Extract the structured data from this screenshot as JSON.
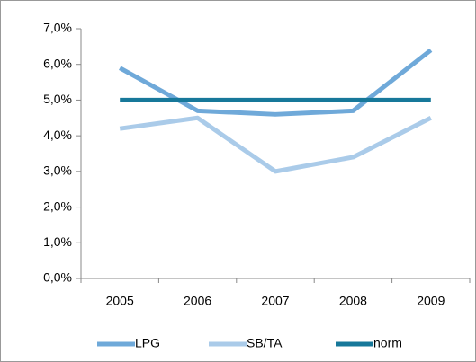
{
  "chart_data": {
    "type": "line",
    "categories": [
      "2005",
      "2006",
      "2007",
      "2008",
      "2009"
    ],
    "series": [
      {
        "name": "LPG",
        "color": "#6fa9d9",
        "values": [
          5.9,
          4.7,
          4.6,
          4.7,
          6.4
        ]
      },
      {
        "name": "SB/TA",
        "color": "#aacbe9",
        "values": [
          4.2,
          4.5,
          3.0,
          3.4,
          4.5
        ]
      },
      {
        "name": "norm",
        "color": "#17789a",
        "values": [
          5.0,
          5.0,
          5.0,
          5.0,
          5.0
        ]
      }
    ],
    "ylim": [
      0,
      7
    ],
    "yticks": [
      {
        "value": 0,
        "label": "0,0%"
      },
      {
        "value": 1,
        "label": "1,0%"
      },
      {
        "value": 2,
        "label": "2,0%"
      },
      {
        "value": 3,
        "label": "3,0%"
      },
      {
        "value": 4,
        "label": "4,0%"
      },
      {
        "value": 5,
        "label": "5,0%"
      },
      {
        "value": 6,
        "label": "6,0%"
      },
      {
        "value": 7,
        "label": "7,0%"
      }
    ],
    "grid": false,
    "legend": "bottom"
  }
}
